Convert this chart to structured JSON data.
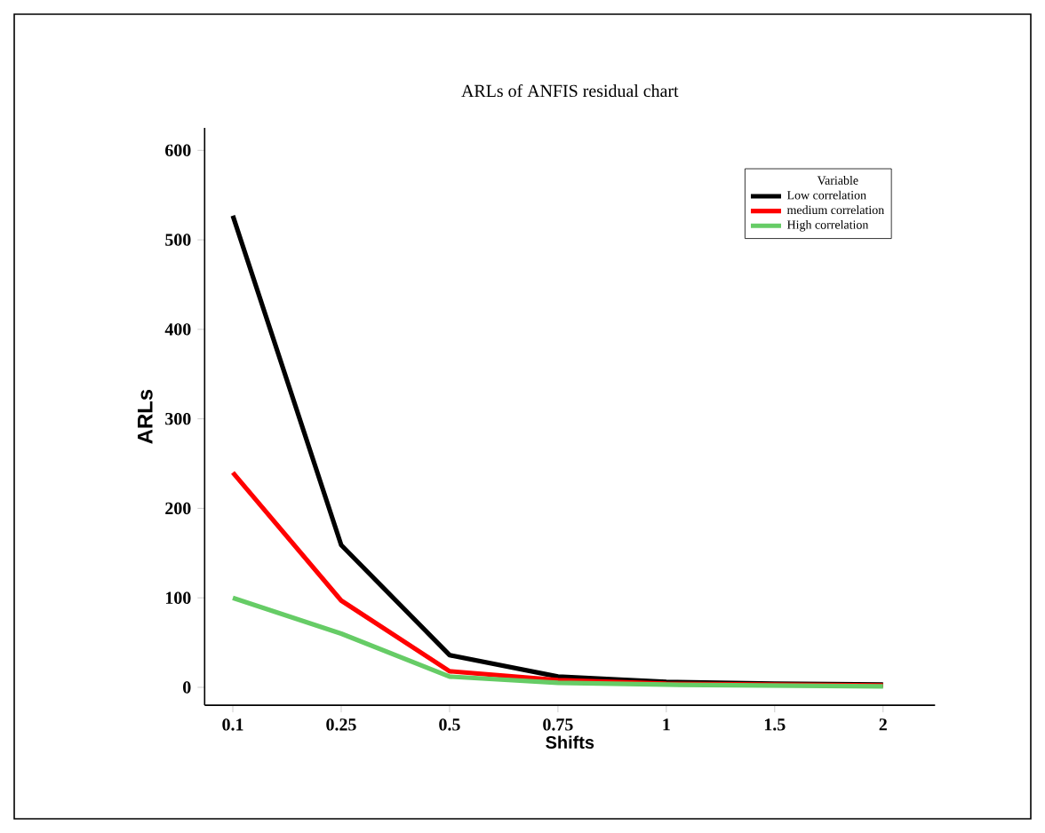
{
  "chart_data": {
    "type": "line",
    "title": "ARLs of ANFIS residual chart",
    "xlabel": "Shifts",
    "ylabel": "ARLs",
    "legend_title": "Variable",
    "categories": [
      "0.1",
      "0.25",
      "0.5",
      "0.75",
      "1",
      "1.5",
      "2"
    ],
    "series": [
      {
        "name": "Low correlation",
        "color": "#000000",
        "values": [
          527,
          159,
          36,
          12,
          6,
          4,
          3
        ]
      },
      {
        "name": "medium correlation",
        "color": "#ff0000",
        "values": [
          240,
          97,
          18,
          8,
          4,
          3,
          2
        ]
      },
      {
        "name": "High correlation",
        "color": "#66cc66",
        "values": [
          100,
          60,
          12,
          5,
          3,
          2,
          1
        ]
      }
    ],
    "ylim": [
      -20,
      625
    ],
    "yticks": [
      0,
      100,
      200,
      300,
      400,
      500,
      600
    ],
    "legend": "top right",
    "grid": false,
    "marker": "none",
    "line_style": "solid"
  }
}
